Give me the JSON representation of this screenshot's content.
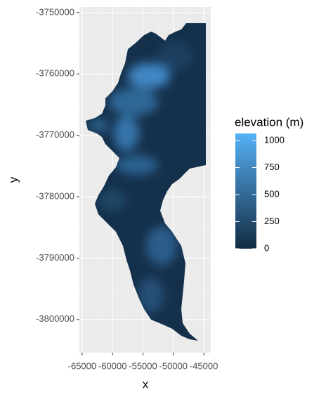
{
  "chart_data": {
    "type": "raster",
    "x_label": "x",
    "y_label": "y",
    "xlim": [
      -65450,
      -43860
    ],
    "xticks": [
      -65000,
      -60000,
      -55000,
      -50000,
      -45000
    ],
    "ylim": [
      -3805400,
      -3749100
    ],
    "yticks": [
      -3800000,
      -3790000,
      -3780000,
      -3770000,
      -3760000,
      -3750000
    ],
    "grid": true,
    "legend": {
      "title": "elevation (m)",
      "limits": [
        0,
        1065
      ],
      "ticks": [
        0,
        250,
        500,
        750,
        1000
      ],
      "low_color": "#132B43",
      "high_color": "#56B1F7"
    }
  }
}
